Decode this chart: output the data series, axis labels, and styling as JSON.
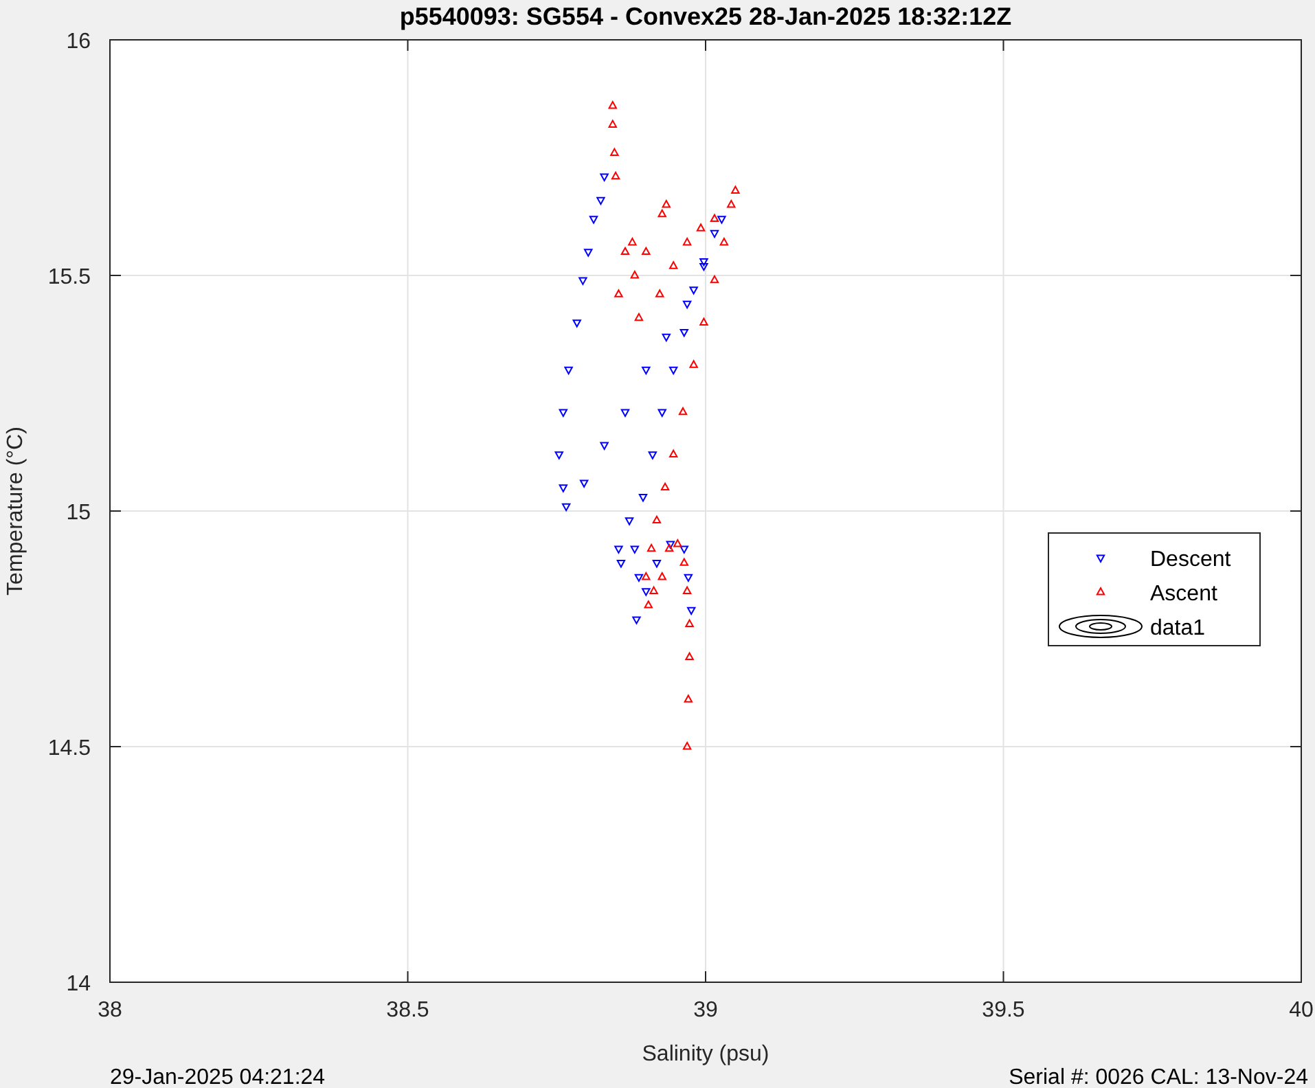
{
  "chart_data": {
    "type": "scatter",
    "title": "p5540093: SG554 - Convex25 28-Jan-2025 18:32:12Z",
    "xlabel": "Salinity (psu)",
    "ylabel": "Temperature (°C)",
    "xlim": [
      38,
      40
    ],
    "ylim": [
      14,
      16
    ],
    "xticks": [
      38,
      38.5,
      39,
      39.5,
      40
    ],
    "yticks": [
      14,
      14.5,
      15,
      15.5,
      16
    ],
    "grid": true,
    "legend": "right",
    "marker": "triangle",
    "annotations": [
      "29-Jan-2025 04:21:24",
      "Serial #: 0026 CAL: 13-Nov-24"
    ],
    "series": [
      {
        "name": "Descent",
        "color": "#0000ff",
        "x": [
          38.83,
          38.824,
          38.812,
          38.803,
          38.794,
          38.784,
          38.77,
          38.761,
          38.754,
          38.761,
          38.766,
          38.796,
          38.83,
          38.865,
          38.9,
          38.934,
          38.969,
          38.997,
          39.015,
          39.027,
          38.997,
          38.98,
          38.964,
          38.946,
          38.927,
          38.911,
          38.895,
          38.872,
          38.854,
          38.858,
          38.881,
          38.888,
          38.884,
          38.9,
          38.918,
          38.941,
          38.964,
          38.971,
          38.976
        ],
        "values": [
          15.71,
          15.66,
          15.62,
          15.55,
          15.49,
          15.4,
          15.3,
          15.21,
          15.12,
          15.05,
          15.01,
          15.06,
          15.14,
          15.21,
          15.3,
          15.37,
          15.44,
          15.52,
          15.59,
          15.62,
          15.53,
          15.47,
          15.38,
          15.3,
          15.21,
          15.12,
          15.03,
          14.98,
          14.92,
          14.89,
          14.92,
          14.86,
          14.77,
          14.83,
          14.89,
          14.93,
          14.92,
          14.86,
          14.79
        ]
      },
      {
        "name": "Ascent",
        "color": "#ff0000",
        "x": [
          38.969,
          38.971,
          38.973,
          38.973,
          38.969,
          38.964,
          38.953,
          38.939,
          38.927,
          38.913,
          38.904,
          38.9,
          38.909,
          38.918,
          38.932,
          38.946,
          38.962,
          38.98,
          38.997,
          39.015,
          39.031,
          39.043,
          39.05,
          38.888,
          38.923,
          38.946,
          38.969,
          38.992,
          39.015,
          38.881,
          38.9,
          38.927,
          38.934,
          38.865,
          38.877,
          38.854,
          38.849,
          38.847,
          38.844,
          38.844
        ],
        "values": [
          14.5,
          14.6,
          14.69,
          14.76,
          14.83,
          14.89,
          14.93,
          14.92,
          14.86,
          14.83,
          14.8,
          14.86,
          14.92,
          14.98,
          15.05,
          15.12,
          15.21,
          15.31,
          15.4,
          15.49,
          15.57,
          15.65,
          15.68,
          15.41,
          15.46,
          15.52,
          15.57,
          15.6,
          15.62,
          15.5,
          15.55,
          15.63,
          15.65,
          15.55,
          15.57,
          15.46,
          15.71,
          15.76,
          15.82,
          15.86
        ]
      },
      {
        "name": "data1",
        "type": "other",
        "color": "#000000"
      }
    ]
  }
}
